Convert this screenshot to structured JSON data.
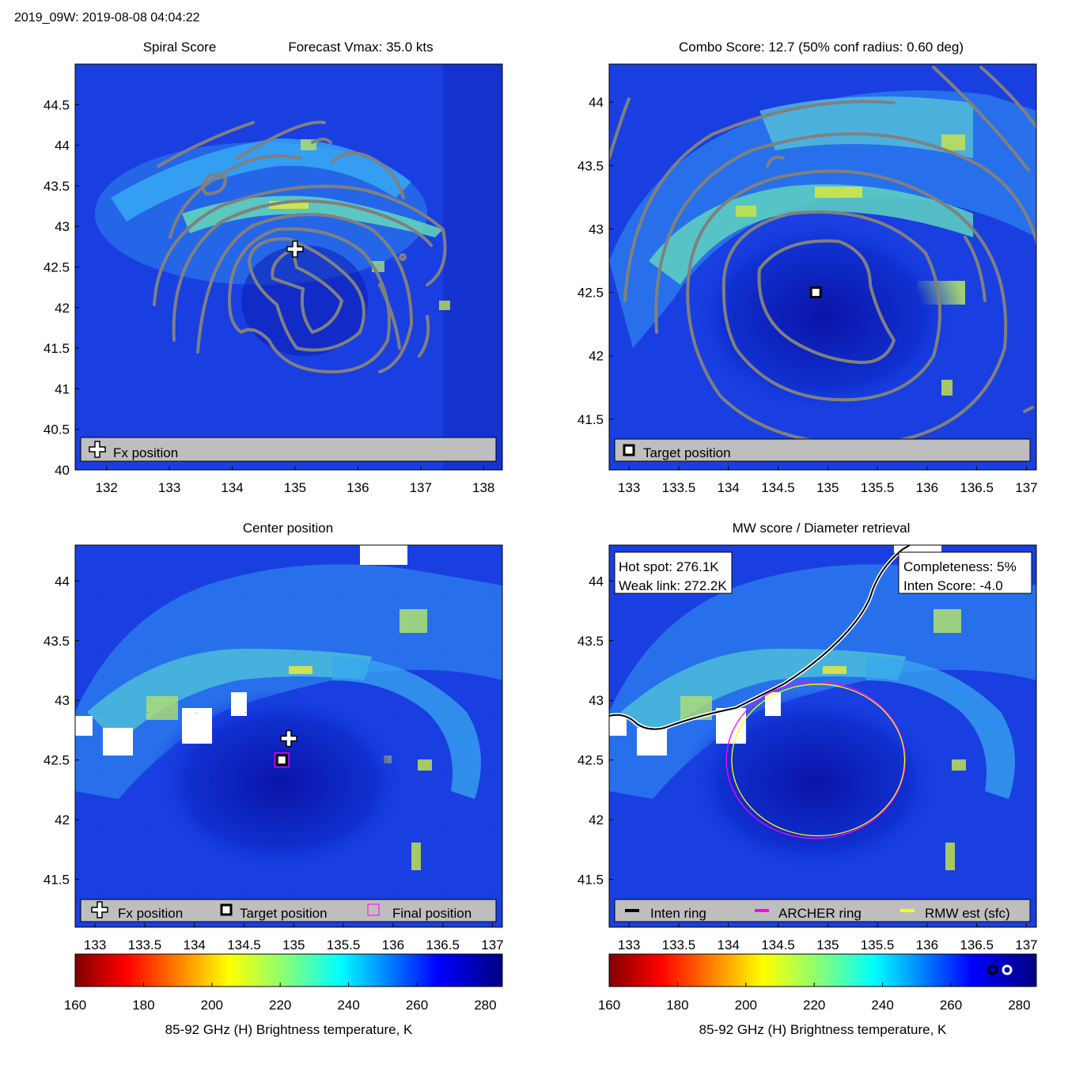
{
  "figure_title": "2019_09W: 2019-08-08 04:04:22",
  "colors": {
    "contour": "#808080",
    "legend_bg": "#bebebe",
    "archer_ring": "#ff00ff",
    "rmw_ring": "#ffff00",
    "inten_ring": "#000000",
    "coastline": "#000000",
    "final_marker": "#ff00ff"
  },
  "chart_data": [
    {
      "id": "spiral",
      "type": "heatmap",
      "title_left": "Spiral Score",
      "title_right": "Forecast Vmax: 35.0 kts",
      "xlim": [
        131.5,
        138.3
      ],
      "ylim": [
        40,
        45
      ],
      "xticks": [
        "132",
        "133",
        "134",
        "135",
        "136",
        "137",
        "138"
      ],
      "yticks": [
        "40",
        "40.5",
        "41",
        "41.5",
        "42",
        "42.5",
        "43",
        "43.5",
        "44",
        "44.5"
      ],
      "markers": [
        {
          "kind": "fx",
          "lon": 135.0,
          "lat": 42.72
        }
      ],
      "legend": [
        {
          "kind": "fx",
          "label": "Fx position"
        }
      ]
    },
    {
      "id": "combo",
      "type": "heatmap",
      "title": "Combo Score: 12.7  (50% conf radius: 0.60 deg)",
      "xlim": [
        132.8,
        137.1
      ],
      "ylim": [
        41.1,
        44.3
      ],
      "xticks": [
        "133",
        "133.5",
        "134",
        "134.5",
        "135",
        "135.5",
        "136",
        "136.5",
        "137"
      ],
      "yticks": [
        "41.5",
        "42",
        "42.5",
        "43",
        "43.5",
        "44"
      ],
      "markers": [
        {
          "kind": "target",
          "lon": 134.88,
          "lat": 42.5
        }
      ],
      "legend": [
        {
          "kind": "target",
          "label": "Target position"
        }
      ]
    },
    {
      "id": "center",
      "type": "heatmap",
      "title": "Center position",
      "xlim": [
        132.8,
        137.1
      ],
      "ylim": [
        41.1,
        44.3
      ],
      "xticks": [
        "133",
        "133.5",
        "134",
        "134.5",
        "135",
        "135.5",
        "136",
        "136.5",
        "137"
      ],
      "yticks": [
        "41.5",
        "42",
        "42.5",
        "43",
        "43.5",
        "44"
      ],
      "markers": [
        {
          "kind": "fx",
          "lon": 134.95,
          "lat": 42.68
        },
        {
          "kind": "target",
          "lon": 134.88,
          "lat": 42.5
        },
        {
          "kind": "final",
          "lon": 134.88,
          "lat": 42.5
        }
      ],
      "legend": [
        {
          "kind": "fx",
          "label": "Fx position"
        },
        {
          "kind": "target",
          "label": "Target position"
        },
        {
          "kind": "final",
          "label": "Final position"
        }
      ],
      "colorbar": {
        "ticks": [
          "160",
          "180",
          "200",
          "220",
          "240",
          "260",
          "280"
        ],
        "range": [
          160,
          285
        ],
        "label": "85-92 GHz (H) Brightness temperature, K"
      }
    },
    {
      "id": "mw",
      "type": "heatmap",
      "title": "MW score / Diameter retrieval",
      "xlim": [
        132.8,
        137.1
      ],
      "ylim": [
        41.1,
        44.3
      ],
      "xticks": [
        "133",
        "133.5",
        "134",
        "134.5",
        "135",
        "135.5",
        "136",
        "136.5",
        "137"
      ],
      "yticks": [
        "41.5",
        "42",
        "42.5",
        "43",
        "43.5",
        "44"
      ],
      "info_left": [
        "Hot spot: 276.1K",
        "Weak link: 272.2K"
      ],
      "info_right": [
        "Completeness: 5%",
        "Inten Score: -4.0"
      ],
      "rings": [
        {
          "kind": "archer",
          "lon": 134.88,
          "lat": 42.5,
          "radius_deg": 0.9
        },
        {
          "kind": "rmw",
          "lon": 134.88,
          "lat": 42.5,
          "radius_deg": 0.87
        }
      ],
      "legend": [
        {
          "kind": "inten",
          "label": "Inten ring"
        },
        {
          "kind": "archer",
          "label": "ARCHER ring"
        },
        {
          "kind": "rmw",
          "label": "RMW est (sfc)"
        }
      ],
      "colorbar": {
        "ticks": [
          "160",
          "180",
          "200",
          "220",
          "240",
          "260",
          "280"
        ],
        "range": [
          160,
          285
        ],
        "label": "85-92 GHz (H) Brightness temperature, K"
      }
    }
  ]
}
